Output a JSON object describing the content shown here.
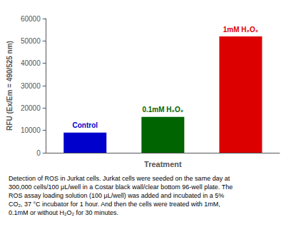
{
  "chart_data": {
    "type": "bar",
    "categories": [
      "Control",
      "0.1mM H₂O₂",
      "1mM H₂O₂"
    ],
    "values": [
      9000,
      16000,
      52000
    ],
    "colors": [
      "#0000cc",
      "#006400",
      "#dd0000"
    ],
    "xlabel": "Treatment",
    "ylabel": "RFU (Ex/Em = 490/525 nm)",
    "ylim": [
      0,
      60000
    ],
    "yticks": [
      0,
      10000,
      20000,
      30000,
      40000,
      50000,
      60000
    ],
    "grid": false,
    "tick_labels": "y",
    "annotations": [
      "Detection of ROS in Jurkat cells. Jurkat cells were seeded on the same day at",
      "300,000 cells/100 μL/well in a Costar black wall/clear bottom 96-well plate. The",
      "ROS assay loading solution (100 μL/well) was added and incubated in a 5%",
      "CO₂, 37 °C incubator for 1 hour. And then the cells were treated with 1mM,",
      "0.1mM or without H₂O₂ for 30 minutes."
    ]
  }
}
